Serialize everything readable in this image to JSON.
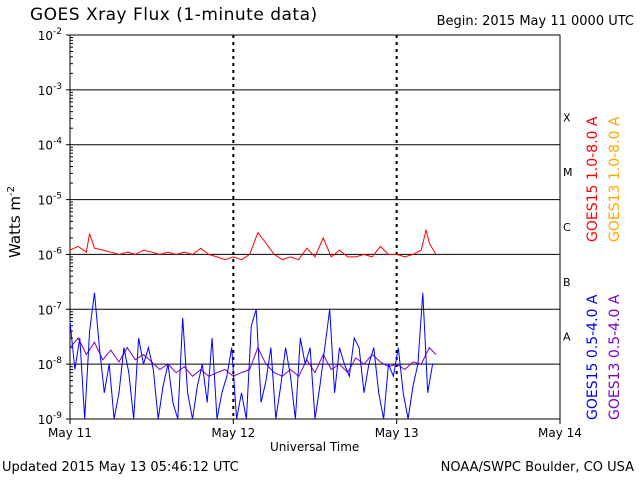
{
  "header": {
    "title": "GOES Xray Flux (1-minute data)",
    "begin": "Begin:  2015 May 11 0000 UTC"
  },
  "footer": {
    "updated": "Updated 2015 May 13 05:46:12 UTC",
    "credit": "NOAA/SWPC Boulder, CO USA"
  },
  "chart_data": {
    "type": "line",
    "xlabel": "Universal Time",
    "ylabel": "Watts m",
    "ylabel_exponent": "-2",
    "yscale": "log",
    "ylim_exponent": [
      -9,
      -2
    ],
    "y_tick_base": "10",
    "y_ticks": [
      "-2",
      "-3",
      "-4",
      "-5",
      "-6",
      "-7",
      "-8",
      "-9"
    ],
    "x_ticks": [
      "May 11",
      "May 12",
      "May 13",
      "May 14"
    ],
    "x_range_days": [
      0,
      3
    ],
    "flare_classes": [
      "X",
      "M",
      "C",
      "B",
      "A"
    ],
    "grid": true,
    "legend_placement": "right, rotated",
    "data_end_day": 2.24,
    "series": [
      {
        "name": "GOES15 1.0-8.0 A",
        "color": "#ff0000",
        "x": [
          0,
          0.05,
          0.1,
          0.12,
          0.15,
          0.2,
          0.25,
          0.3,
          0.35,
          0.4,
          0.45,
          0.5,
          0.55,
          0.6,
          0.65,
          0.7,
          0.75,
          0.8,
          0.85,
          0.9,
          0.95,
          1.0,
          1.05,
          1.1,
          1.15,
          1.2,
          1.25,
          1.3,
          1.35,
          1.4,
          1.45,
          1.5,
          1.55,
          1.6,
          1.65,
          1.7,
          1.75,
          1.8,
          1.85,
          1.9,
          1.95,
          2.0,
          2.05,
          2.1,
          2.15,
          2.18,
          2.2,
          2.24
        ],
        "y": [
          1.2e-06,
          1.4e-06,
          1.1e-06,
          2.4e-06,
          1.3e-06,
          1.2e-06,
          1.1e-06,
          1e-06,
          1.1e-06,
          1e-06,
          1.2e-06,
          1.1e-06,
          1e-06,
          1.1e-06,
          1e-06,
          1.1e-06,
          1e-06,
          1.3e-06,
          1e-06,
          9e-07,
          8e-07,
          9e-07,
          8e-07,
          1e-06,
          2.5e-06,
          1.6e-06,
          1e-06,
          8e-07,
          9e-07,
          8e-07,
          1.3e-06,
          9e-07,
          2e-06,
          9e-07,
          1.2e-06,
          9e-07,
          9e-07,
          1e-06,
          9e-07,
          1.4e-06,
          1e-06,
          1e-06,
          9e-07,
          1e-06,
          1.2e-06,
          2.8e-06,
          1.6e-06,
          1e-06
        ]
      },
      {
        "name": "GOES13 1.0-8.0 A",
        "color": "#ffa500",
        "x": [],
        "y": []
      },
      {
        "name": "GOES15 0.5-4.0 A",
        "color": "#0000ff",
        "x": [
          0,
          0.03,
          0.06,
          0.09,
          0.12,
          0.15,
          0.18,
          0.21,
          0.24,
          0.27,
          0.3,
          0.33,
          0.36,
          0.39,
          0.42,
          0.45,
          0.48,
          0.51,
          0.54,
          0.57,
          0.6,
          0.63,
          0.66,
          0.69,
          0.72,
          0.75,
          0.78,
          0.81,
          0.84,
          0.87,
          0.9,
          0.93,
          0.96,
          0.99,
          1.02,
          1.05,
          1.08,
          1.11,
          1.14,
          1.17,
          1.2,
          1.23,
          1.26,
          1.29,
          1.32,
          1.35,
          1.38,
          1.41,
          1.44,
          1.47,
          1.5,
          1.53,
          1.56,
          1.59,
          1.62,
          1.65,
          1.68,
          1.71,
          1.74,
          1.77,
          1.8,
          1.83,
          1.86,
          1.89,
          1.92,
          1.95,
          1.98,
          2.01,
          2.04,
          2.07,
          2.1,
          2.13,
          2.16,
          2.19,
          2.22,
          2.24
        ],
        "y": [
          6e-08,
          8e-09,
          3e-08,
          1e-09,
          4e-08,
          2e-07,
          2e-08,
          3e-09,
          1e-08,
          1e-09,
          3e-09,
          2e-08,
          7e-09,
          1e-09,
          3e-08,
          1e-08,
          2e-08,
          8e-09,
          1e-09,
          4e-09,
          1e-08,
          2e-09,
          1e-09,
          7e-08,
          3e-09,
          1e-09,
          4e-09,
          1e-08,
          2e-09,
          3e-08,
          1e-09,
          3e-09,
          6e-09,
          2e-08,
          1e-09,
          3e-09,
          1e-09,
          5e-08,
          1e-07,
          2e-09,
          5e-09,
          2e-08,
          1e-09,
          4e-09,
          2e-08,
          6e-09,
          1e-09,
          3e-08,
          1e-08,
          2e-08,
          1e-09,
          4e-09,
          2e-08,
          1e-07,
          3e-09,
          2e-08,
          1e-08,
          6e-09,
          3e-08,
          2e-08,
          3e-09,
          1e-08,
          2e-08,
          3e-09,
          1e-09,
          1e-08,
          6e-09,
          2e-08,
          3e-09,
          1e-09,
          4e-09,
          1e-08,
          2e-07,
          3e-09,
          1e-08,
          1e-08
        ]
      },
      {
        "name": "GOES13 0.5-4.0 A",
        "color": "#7b00cc",
        "x": [
          0,
          0.05,
          0.1,
          0.15,
          0.2,
          0.25,
          0.3,
          0.35,
          0.4,
          0.45,
          0.5,
          0.55,
          0.6,
          0.65,
          0.7,
          0.75,
          0.8,
          0.85,
          0.9,
          0.95,
          1.0,
          1.05,
          1.1,
          1.15,
          1.2,
          1.25,
          1.3,
          1.35,
          1.4,
          1.45,
          1.5,
          1.55,
          1.6,
          1.65,
          1.7,
          1.75,
          1.8,
          1.85,
          1.9,
          1.95,
          2.0,
          2.05,
          2.1,
          2.15,
          2.2,
          2.24
        ],
        "y": [
          2e-08,
          3e-08,
          1.5e-08,
          2.5e-08,
          1.2e-08,
          1.8e-08,
          1.1e-08,
          2e-08,
          1.2e-08,
          1.5e-08,
          1.1e-08,
          8e-09,
          1e-08,
          7e-09,
          9e-09,
          6e-09,
          8e-09,
          6e-09,
          7e-09,
          8e-09,
          6e-09,
          7e-09,
          8e-09,
          2e-08,
          1e-08,
          7e-09,
          6e-09,
          8e-09,
          6e-09,
          1.2e-08,
          7e-09,
          1.5e-08,
          8e-09,
          1e-08,
          7e-09,
          1.3e-08,
          1e-08,
          1.5e-08,
          1.1e-08,
          9e-09,
          1e-08,
          8e-09,
          1.1e-08,
          1e-08,
          2e-08,
          1.5e-08
        ]
      }
    ]
  }
}
